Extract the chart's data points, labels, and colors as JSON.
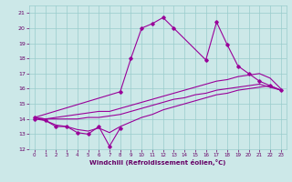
{
  "x_values": [
    0,
    1,
    2,
    3,
    4,
    5,
    6,
    7,
    8,
    9,
    10,
    11,
    12,
    13,
    14,
    15,
    16,
    17,
    18,
    19,
    20,
    21,
    22,
    23
  ],
  "series1_x": [
    0,
    1,
    2,
    3,
    4,
    5,
    6,
    7,
    8
  ],
  "series1_y": [
    14.0,
    13.9,
    13.5,
    13.5,
    13.1,
    13.0,
    13.5,
    12.2,
    13.4
  ],
  "series2_x": [
    0,
    8,
    9,
    10,
    11,
    12,
    13,
    16,
    17,
    18,
    19,
    20,
    21,
    22,
    23
  ],
  "series2_y": [
    14.1,
    15.8,
    18.0,
    20.0,
    20.3,
    20.7,
    20.0,
    17.9,
    20.4,
    18.9,
    17.5,
    17.0,
    16.5,
    16.2,
    15.9
  ],
  "series3_min": [
    14.1,
    13.9,
    13.6,
    13.5,
    13.3,
    13.2,
    13.4,
    13.1,
    13.5,
    13.8,
    14.1,
    14.3,
    14.6,
    14.8,
    15.0,
    15.2,
    15.4,
    15.6,
    15.7,
    15.9,
    16.0,
    16.1,
    16.2,
    15.9
  ],
  "series3_max": [
    14.1,
    14.0,
    14.1,
    14.2,
    14.3,
    14.4,
    14.5,
    14.5,
    14.7,
    14.9,
    15.1,
    15.3,
    15.5,
    15.7,
    15.9,
    16.1,
    16.3,
    16.5,
    16.6,
    16.8,
    16.9,
    17.0,
    16.7,
    16.0
  ],
  "series3_mid": [
    14.1,
    14.0,
    14.0,
    14.0,
    14.0,
    14.1,
    14.1,
    14.2,
    14.3,
    14.5,
    14.7,
    14.9,
    15.1,
    15.3,
    15.4,
    15.6,
    15.7,
    15.9,
    16.0,
    16.1,
    16.2,
    16.3,
    16.1,
    15.9
  ],
  "line_color": "#990099",
  "bg_color": "#cce8e8",
  "grid_color": "#99cccc",
  "xlabel": "Windchill (Refroidissement éolien,°C)",
  "xlim": [
    -0.5,
    23.5
  ],
  "ylim": [
    12,
    21.5
  ],
  "yticks": [
    12,
    13,
    14,
    15,
    16,
    17,
    18,
    19,
    20,
    21
  ],
  "xticks": [
    0,
    1,
    2,
    3,
    4,
    5,
    6,
    7,
    8,
    9,
    10,
    11,
    12,
    13,
    14,
    15,
    16,
    17,
    18,
    19,
    20,
    21,
    22,
    23
  ]
}
